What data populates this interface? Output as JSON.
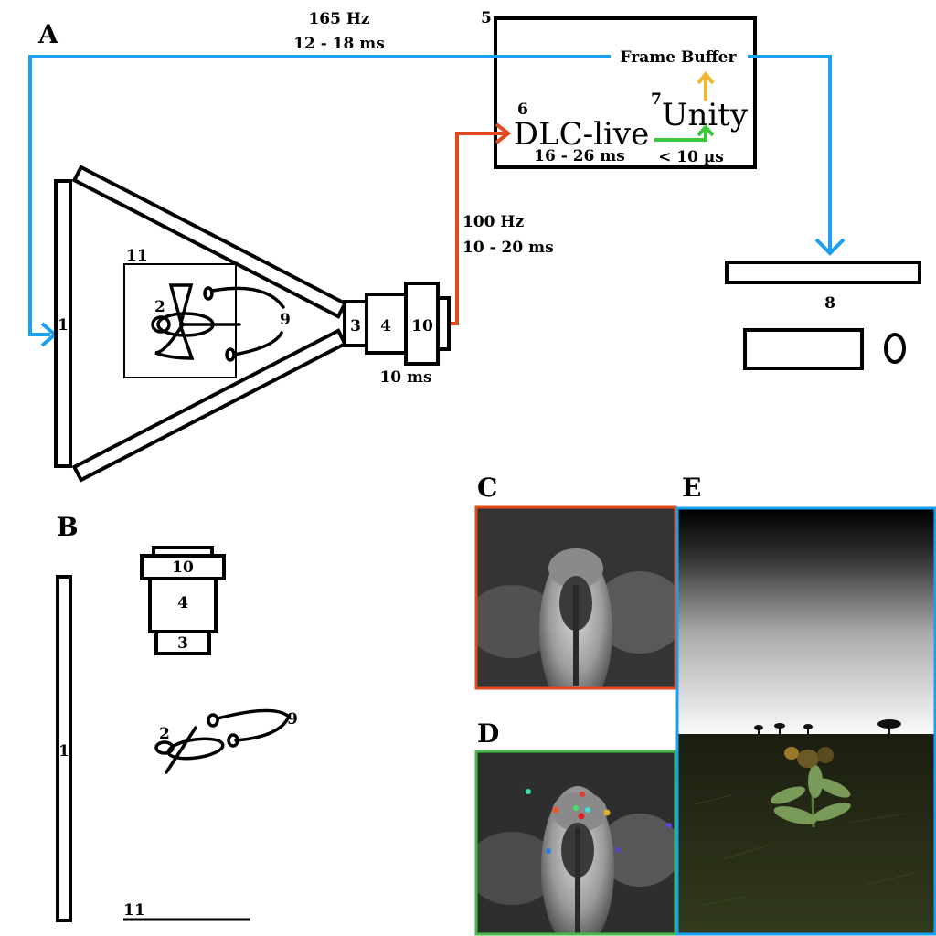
{
  "panels": {
    "a": "A",
    "b": "B",
    "c": "C",
    "d": "D",
    "e": "E"
  },
  "top_link": {
    "rate": "165 Hz",
    "latency": "12 - 18 ms"
  },
  "computer": {
    "id": "5",
    "frame_buffer": "Frame Buffer",
    "dlc_id": "6",
    "dlc_label": "DLC-live",
    "dlc_latency": "16 - 26 ms",
    "unity_id": "7",
    "unity_label": "Unity",
    "unity_latency": "< 10 µs"
  },
  "camera_link": {
    "rate": "100 Hz",
    "latency": "10 - 20 ms"
  },
  "camera_latency": "10 ms",
  "part_numbers": {
    "screen": "1",
    "fly": "2",
    "lens": "3",
    "camera_body": "4",
    "camera_top": "10",
    "arena": "11",
    "projector": "8",
    "tether": "9"
  },
  "colors": {
    "display_arrow": "#1aa0f0",
    "camera_arrow": "#e24a1e",
    "unity_arrow": "#3cc83c",
    "framebuffer_arrow": "#f2b632",
    "panel_c_border": "#e24a1e",
    "panel_d_border": "#45b94a",
    "panel_e_border": "#1aa0f0"
  }
}
